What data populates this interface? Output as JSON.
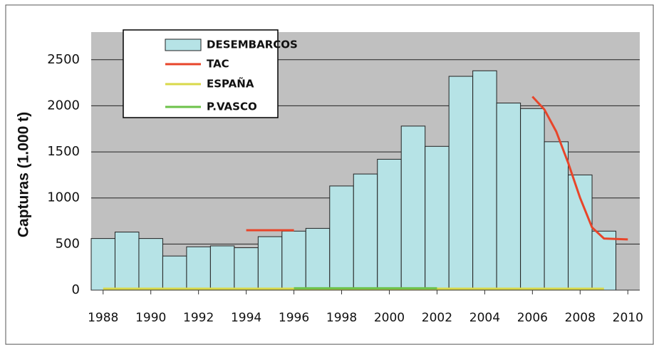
{
  "chart_data": {
    "type": "bar",
    "y_label": "Capturas (1.000 t)",
    "xlim": [
      1987.5,
      2010.5
    ],
    "xticks": [
      1988,
      1990,
      1992,
      1994,
      1996,
      1998,
      2000,
      2002,
      2004,
      2006,
      2008,
      2010
    ],
    "ylim": [
      0,
      2800
    ],
    "yticks": [
      0,
      500,
      1000,
      1500,
      2000,
      2500
    ],
    "grid": true,
    "series": [
      {
        "name": "DESEMBARCOS",
        "type": "bar",
        "color": "#b6e3e6",
        "x": [
          1988,
          1989,
          1990,
          1991,
          1992,
          1993,
          1994,
          1995,
          1996,
          1997,
          1998,
          1999,
          2000,
          2001,
          2002,
          2003,
          2004,
          2005,
          2006,
          2007,
          2008,
          2009
        ],
        "values": [
          560,
          630,
          560,
          370,
          470,
          480,
          460,
          580,
          640,
          670,
          1130,
          1260,
          1420,
          1780,
          1560,
          2320,
          2380,
          2030,
          1970,
          1610,
          1250,
          640
        ]
      },
      {
        "name": "TAC",
        "type": "line",
        "color": "#e8452a",
        "x": [
          1994,
          1996,
          2001,
          2006,
          2006.5,
          2007,
          2007.5,
          2008,
          2008.5,
          2009,
          2010
        ],
        "values": [
          650,
          650,
          null,
          2100,
          1960,
          1720,
          1380,
          1000,
          680,
          560,
          550
        ]
      },
      {
        "name": "ESPAÑA",
        "type": "line",
        "color": "#d9d94a",
        "x": [
          1988,
          2009
        ],
        "values": [
          15,
          15
        ]
      },
      {
        "name": "P.VASCO",
        "type": "line",
        "color": "#6cc24a",
        "x": [
          1996,
          2002,
          2003,
          2007
        ],
        "values": [
          20,
          20,
          null,
          20
        ]
      }
    ]
  }
}
